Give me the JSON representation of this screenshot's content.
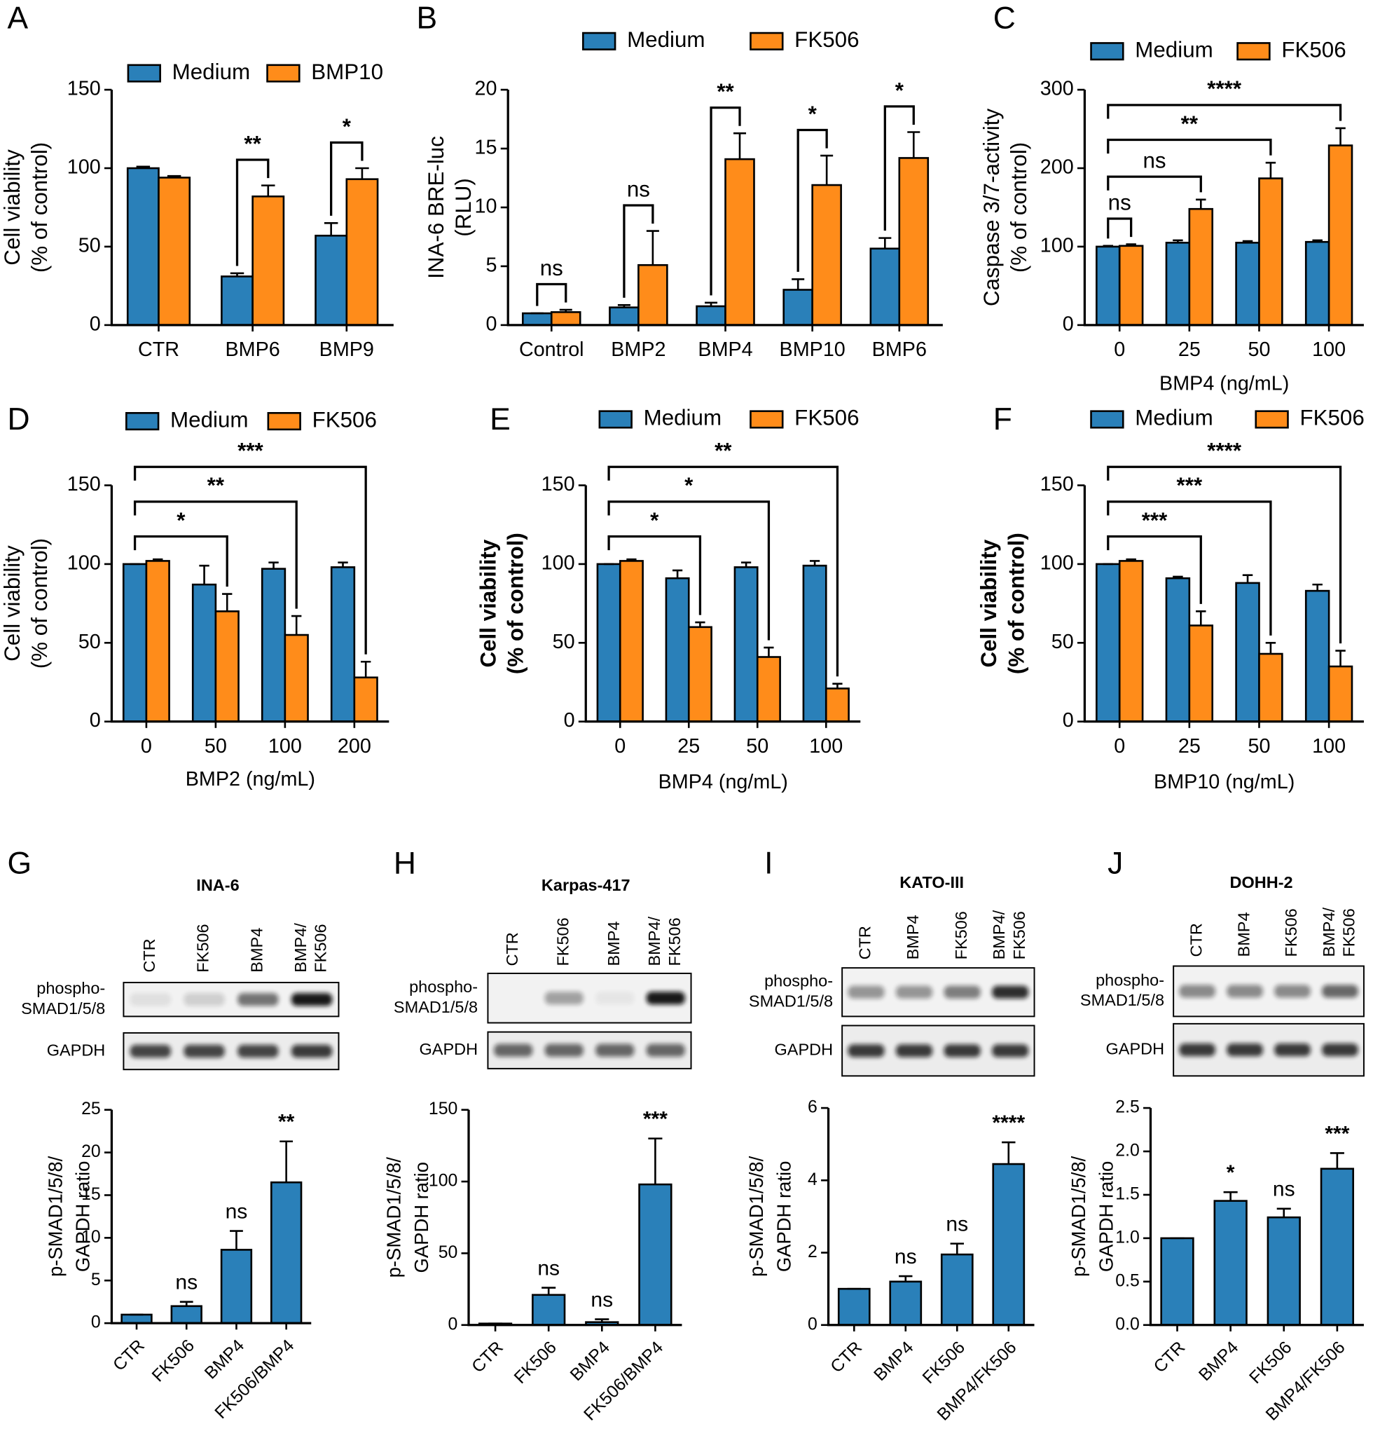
{
  "chart_data": [
    {
      "type": "bar",
      "panel": "A",
      "ylabel": [
        "Cell viability",
        "(% of control)"
      ],
      "categories": [
        "CTR",
        "BMP6",
        "BMP9"
      ],
      "series": [
        {
          "name": "Medium",
          "color": "#2a80b9",
          "values": [
            100,
            31,
            57
          ],
          "errors": [
            1,
            2,
            8
          ]
        },
        {
          "name": "BMP10",
          "color": "#ff8c1a",
          "values": [
            94,
            82,
            93
          ],
          "errors": [
            1,
            7,
            7
          ]
        }
      ],
      "ylim": [
        0,
        150
      ],
      "yticks": [
        0,
        50,
        100,
        150
      ],
      "annotations": [
        {
          "label": "**",
          "categories": [
            1,
            1
          ]
        },
        {
          "label": "*",
          "categories": [
            2,
            2
          ]
        }
      ]
    },
    {
      "type": "bar",
      "panel": "B",
      "ylabel": [
        "INA-6 BRE-luc",
        "(RLU)"
      ],
      "categories": [
        "Control",
        "BMP2",
        "BMP4",
        "BMP10",
        "BMP6"
      ],
      "series": [
        {
          "name": "Medium",
          "color": "#2a80b9",
          "values": [
            1,
            1.5,
            1.6,
            3,
            6.5
          ],
          "errors": [
            0,
            0.2,
            0.3,
            0.9,
            0.9
          ]
        },
        {
          "name": "FK506",
          "color": "#ff8c1a",
          "values": [
            1.1,
            5.1,
            14.1,
            11.9,
            14.2
          ],
          "errors": [
            0.2,
            2.9,
            2.2,
            2.5,
            2.2
          ]
        }
      ],
      "ylim": [
        0,
        20
      ],
      "yticks": [
        0,
        5,
        10,
        15,
        20
      ],
      "annotations": [
        {
          "label": "ns",
          "categories": [
            0,
            0
          ]
        },
        {
          "label": "ns",
          "categories": [
            1,
            1
          ]
        },
        {
          "label": "**",
          "categories": [
            2,
            2
          ]
        },
        {
          "label": "*",
          "categories": [
            3,
            3
          ]
        },
        {
          "label": "*",
          "categories": [
            4,
            4
          ]
        }
      ]
    },
    {
      "type": "bar",
      "panel": "C",
      "ylabel": [
        "Caspase 3/7-activity",
        "(% of control)"
      ],
      "xlabel": "BMP4 (ng/mL)",
      "categories": [
        "0",
        "25",
        "50",
        "100"
      ],
      "series": [
        {
          "name": "Medium",
          "color": "#2a80b9",
          "values": [
            100,
            105,
            105,
            106
          ],
          "errors": [
            1,
            3,
            2,
            2
          ]
        },
        {
          "name": "FK506",
          "color": "#ff8c1a",
          "values": [
            101,
            148,
            187,
            229
          ],
          "errors": [
            2,
            12,
            20,
            22
          ]
        }
      ],
      "ylim": [
        0,
        300
      ],
      "yticks": [
        0,
        100,
        200,
        300
      ],
      "annotations": [
        {
          "label": "ns",
          "categories": [
            0,
            0
          ]
        },
        {
          "label": "ns",
          "categories": [
            0,
            1
          ]
        },
        {
          "label": "**",
          "categories": [
            0,
            2
          ]
        },
        {
          "label": "****",
          "categories": [
            0,
            3
          ]
        }
      ]
    },
    {
      "type": "bar",
      "panel": "D",
      "ylabel": [
        "Cell viability",
        "(% of control)"
      ],
      "xlabel": "BMP2 (ng/mL)",
      "categories": [
        "0",
        "50",
        "100",
        "200"
      ],
      "series": [
        {
          "name": "Medium",
          "color": "#2a80b9",
          "values": [
            100,
            87,
            97,
            98
          ],
          "errors": [
            0,
            12,
            4,
            3
          ]
        },
        {
          "name": "FK506",
          "color": "#ff8c1a",
          "values": [
            102,
            70,
            55,
            28
          ],
          "errors": [
            1,
            11,
            12,
            10
          ]
        }
      ],
      "ylim": [
        0,
        150
      ],
      "yticks": [
        0,
        50,
        100,
        150
      ],
      "annotations": [
        {
          "label": "*",
          "categories": [
            0,
            1
          ]
        },
        {
          "label": "**",
          "categories": [
            0,
            2
          ]
        },
        {
          "label": "***",
          "categories": [
            0,
            3
          ]
        }
      ]
    },
    {
      "type": "bar",
      "panel": "E",
      "ylabel": [
        "Cell viability",
        "(% of control)"
      ],
      "ylabel_bold": true,
      "xlabel": "BMP4 (ng/mL)",
      "categories": [
        "0",
        "25",
        "50",
        "100"
      ],
      "series": [
        {
          "name": "Medium",
          "color": "#2a80b9",
          "values": [
            100,
            91,
            98,
            99
          ],
          "errors": [
            0,
            5,
            3,
            3
          ]
        },
        {
          "name": "FK506",
          "color": "#ff8c1a",
          "values": [
            102,
            60,
            41,
            21
          ],
          "errors": [
            1,
            3,
            6,
            3
          ]
        }
      ],
      "ylim": [
        0,
        150
      ],
      "yticks": [
        0,
        50,
        100,
        150
      ],
      "annotations": [
        {
          "label": "*",
          "categories": [
            0,
            1
          ]
        },
        {
          "label": "*",
          "categories": [
            0,
            2
          ]
        },
        {
          "label": "**",
          "categories": [
            0,
            3
          ]
        }
      ]
    },
    {
      "type": "bar",
      "panel": "F",
      "ylabel": [
        "Cell viability",
        "(% of control)"
      ],
      "ylabel_bold": true,
      "xlabel": "BMP10 (ng/mL)",
      "categories": [
        "0",
        "25",
        "50",
        "100"
      ],
      "series": [
        {
          "name": "Medium",
          "color": "#2a80b9",
          "values": [
            100,
            91,
            88,
            83
          ],
          "errors": [
            0,
            1,
            5,
            4
          ]
        },
        {
          "name": "FK506",
          "color": "#ff8c1a",
          "values": [
            102,
            61,
            43,
            35
          ],
          "errors": [
            1,
            9,
            7,
            10
          ]
        }
      ],
      "ylim": [
        0,
        150
      ],
      "yticks": [
        0,
        50,
        100,
        150
      ],
      "annotations": [
        {
          "label": "***",
          "categories": [
            0,
            1
          ]
        },
        {
          "label": "***",
          "categories": [
            0,
            2
          ]
        },
        {
          "label": "****",
          "categories": [
            0,
            3
          ]
        }
      ]
    },
    {
      "type": "bar",
      "panel": "G",
      "blot": {
        "title": "INA-6",
        "lanes": [
          [
            "CTR"
          ],
          [
            "FK506"
          ],
          [
            "BMP4"
          ],
          [
            "BMP4/",
            "FK506"
          ]
        ],
        "rows": [
          [
            "phospho-",
            "SMAD1/5/8"
          ],
          [
            "GAPDH"
          ]
        ]
      },
      "ylabel": [
        "p-SMAD1/5/8/",
        "GAPDH ratio"
      ],
      "categories": [
        "CTR",
        "FK506",
        "BMP4",
        "FK506/BMP4"
      ],
      "values": [
        1,
        2,
        8.6,
        16.5
      ],
      "errors": [
        0,
        0.5,
        2.2,
        4.8
      ],
      "color": "#2a80b9",
      "ylim": [
        0,
        25
      ],
      "yticks": [
        0,
        5,
        10,
        15,
        20,
        25
      ],
      "annotations": [
        {
          "label": "ns",
          "category": 1
        },
        {
          "label": "ns",
          "category": 2
        },
        {
          "label": "**",
          "category": 3
        }
      ]
    },
    {
      "type": "bar",
      "panel": "H",
      "blot": {
        "title": "Karpas-417",
        "lanes": [
          [
            "CTR"
          ],
          [
            "FK506"
          ],
          [
            "BMP4"
          ],
          [
            "BMP4/",
            "FK506"
          ]
        ],
        "rows": [
          [
            "phospho-",
            "SMAD1/5/8"
          ],
          [
            "GAPDH"
          ]
        ]
      },
      "ylabel": [
        "p-SMAD1/5/8/",
        "GAPDH ratio"
      ],
      "categories": [
        "CTR",
        "FK506",
        "BMP4",
        "FK506/BMP4"
      ],
      "values": [
        1,
        21,
        2,
        98
      ],
      "errors": [
        0,
        5,
        2,
        32
      ],
      "color": "#2a80b9",
      "ylim": [
        0,
        150
      ],
      "yticks": [
        0,
        50,
        100,
        150
      ],
      "annotations": [
        {
          "label": "ns",
          "category": 1
        },
        {
          "label": "ns",
          "category": 2
        },
        {
          "label": "***",
          "category": 3
        }
      ]
    },
    {
      "type": "bar",
      "panel": "I",
      "blot": {
        "title": "KATO-III",
        "lanes": [
          [
            "CTR"
          ],
          [
            "BMP4"
          ],
          [
            "FK506"
          ],
          [
            "BMP4/",
            "FK506"
          ]
        ],
        "rows": [
          [
            "phospho-",
            "SMAD1/5/8"
          ],
          [
            "GAPDH"
          ]
        ]
      },
      "ylabel": [
        "p-SMAD1/5/8/",
        "GAPDH ratio"
      ],
      "categories": [
        "CTR",
        "BMP4",
        "FK506",
        "BMP4/FK506"
      ],
      "values": [
        1,
        1.2,
        1.95,
        4.45
      ],
      "errors": [
        0,
        0.15,
        0.3,
        0.6
      ],
      "color": "#2a80b9",
      "ylim": [
        0,
        6
      ],
      "yticks": [
        0,
        2,
        4,
        6
      ],
      "annotations": [
        {
          "label": "ns",
          "category": 1
        },
        {
          "label": "ns",
          "category": 2
        },
        {
          "label": "****",
          "category": 3
        }
      ]
    },
    {
      "type": "bar",
      "panel": "J",
      "blot": {
        "title": "DOHH-2",
        "lanes": [
          [
            "CTR"
          ],
          [
            "BMP4"
          ],
          [
            "FK506"
          ],
          [
            "BMP4/",
            "FK506"
          ]
        ],
        "rows": [
          [
            "phospho-",
            "SMAD1/5/8"
          ],
          [
            "GAPDH"
          ]
        ]
      },
      "ylabel": [
        "p-SMAD1/5/8/",
        "GAPDH ratio"
      ],
      "categories": [
        "CTR",
        "BMP4",
        "FK506",
        "BMP4/FK506"
      ],
      "values": [
        1,
        1.43,
        1.24,
        1.8
      ],
      "errors": [
        0,
        0.1,
        0.1,
        0.18
      ],
      "color": "#2a80b9",
      "ylim": [
        0,
        2.5
      ],
      "yticks": [
        {
          "value": 0,
          "label": "0.0"
        },
        0.5,
        {
          "value": 1,
          "label": "1.0"
        },
        1.5,
        {
          "value": 2,
          "label": "2.0"
        },
        2.5
      ],
      "annotations": [
        {
          "label": "*",
          "category": 1
        },
        {
          "label": "ns",
          "category": 2
        },
        {
          "label": "***",
          "category": 3
        }
      ]
    }
  ]
}
